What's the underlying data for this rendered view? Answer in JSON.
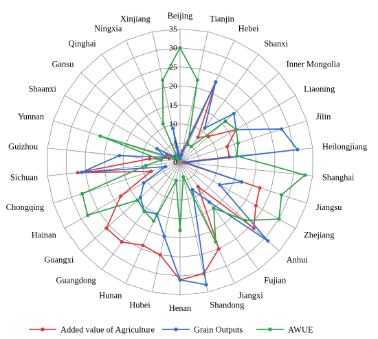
{
  "chart_data": {
    "type": "radar",
    "categories": [
      "Beijing",
      "Tianjin",
      "Hebei",
      "Shanxi",
      "Inner Mongolia",
      "Liaoning",
      "Jilin",
      "Heilongjiang",
      "Shanghai",
      "Jiangsu",
      "Zhejiang",
      "Anhui",
      "Fujian",
      "Jiangxi",
      "Shandong",
      "Henan",
      "Hubei",
      "Hunan",
      "Guangdong",
      "Guangxi",
      "Hainan",
      "Chongqing",
      "Sichuan",
      "Guizhou",
      "Yunnan",
      "Shaanxi",
      "Gansu",
      "Qinghai",
      "Ningxia",
      "Xinjiang"
    ],
    "rlim": [
      0,
      35
    ],
    "rticks": [
      "0",
      "5",
      "10",
      "15",
      "20",
      "25",
      "30",
      "35"
    ],
    "grid": true,
    "legend_position": "bottom",
    "series": [
      {
        "name": "Added value of Agriculture",
        "color": "#e03b3b",
        "values": [
          1.5,
          3,
          23,
          8,
          10,
          17,
          13,
          13,
          1,
          22,
          23,
          26,
          8,
          25,
          30,
          31,
          25,
          24,
          26,
          26,
          18,
          8,
          27,
          8,
          3,
          4,
          2,
          2,
          1,
          4
        ]
      },
      {
        "name": "Grain Outputs",
        "color": "#2e6fd6",
        "values": [
          1,
          2,
          23,
          11,
          19,
          17,
          28,
          31,
          1.5,
          17,
          12,
          31,
          13,
          8,
          33,
          31,
          20,
          15,
          16,
          14,
          11,
          4,
          26,
          16,
          4,
          7,
          2,
          2,
          1,
          9
        ]
      },
      {
        "name": "AWUE",
        "color": "#2ea64a",
        "values": [
          30,
          22,
          5,
          5,
          16,
          17,
          16,
          15,
          33,
          28,
          30,
          23,
          15,
          23,
          4,
          18,
          5,
          17,
          16,
          15,
          28,
          27,
          9,
          5,
          22,
          2,
          1,
          1,
          11,
          22
        ]
      }
    ]
  }
}
